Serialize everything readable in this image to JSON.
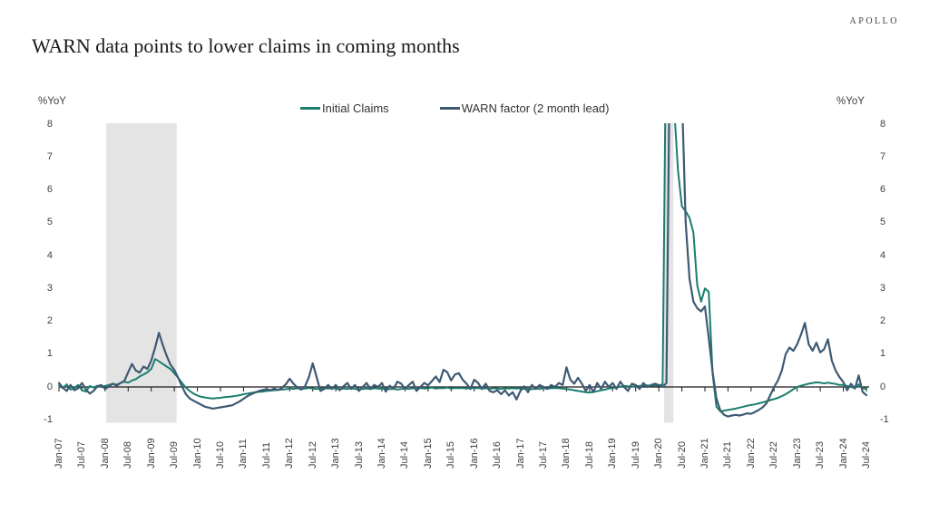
{
  "brand": "APOLLO",
  "title": "WARN data points to lower claims in coming months",
  "axis": {
    "left_unit": "%YoY",
    "right_unit": "%YoY"
  },
  "chart_data": {
    "type": "line",
    "title": "WARN data points to lower claims in coming months",
    "xlabel": "",
    "ylabel": "%YoY",
    "frequency": "monthly",
    "x_start": "Jan-2007",
    "x_end": "Jul-2024",
    "ylim": [
      -1.1,
      8.05
    ],
    "grid": false,
    "legend_position": "top-center",
    "y_ticks": [
      8,
      7,
      6,
      5,
      4,
      3,
      2,
      1,
      0,
      -1
    ],
    "x_tick_labels": [
      "Jan-07",
      "Jul-07",
      "Jan-08",
      "Jul-08",
      "Jan-09",
      "Jul-09",
      "Jan-10",
      "Jul-10",
      "Jan-11",
      "Jul-11",
      "Jan-12",
      "Jul-12",
      "Jan-13",
      "Jul-13",
      "Jan-14",
      "Jul-14",
      "Jan-15",
      "Jul-15",
      "Jan-16",
      "Jul-16",
      "Jan-17",
      "Jul-17",
      "Jan-18",
      "Jul-18",
      "Jan-19",
      "Jul-19",
      "Jan-20",
      "Jul-20",
      "Jan-21",
      "Jul-21",
      "Jan-22",
      "Jul-22",
      "Jan-23",
      "Jul-23",
      "Jan-24",
      "Jul-24"
    ],
    "months_per_tick": 6,
    "recession_bands_month_index": [
      {
        "start": 12.3,
        "end": 30.6
      },
      {
        "start": 157.4,
        "end": 159.8
      }
    ],
    "band_color": "#e4e4e4",
    "zero_line_color": "#1a1a1a",
    "note": "values above ylim are clipped at top of plot (Covid 2020 spike goes off-chart)",
    "series": [
      {
        "name": "Initial Claims",
        "color": "#1a7e6e",
        "values": [
          0.05,
          -0.04,
          0.08,
          -0.08,
          -0.03,
          0.06,
          -0.1,
          -0.14,
          0.03,
          -0.02,
          0.04,
          0,
          0.03,
          0.06,
          0.1,
          0.07,
          0.12,
          0.16,
          0.13,
          0.2,
          0.24,
          0.32,
          0.38,
          0.45,
          0.55,
          0.85,
          0.78,
          0.7,
          0.62,
          0.55,
          0.42,
          0.28,
          0.12,
          -0.02,
          -0.12,
          -0.2,
          -0.26,
          -0.3,
          -0.32,
          -0.34,
          -0.35,
          -0.34,
          -0.33,
          -0.31,
          -0.3,
          -0.29,
          -0.27,
          -0.25,
          -0.22,
          -0.2,
          -0.18,
          -0.16,
          -0.15,
          -0.14,
          -0.12,
          -0.11,
          -0.1,
          -0.09,
          -0.08,
          -0.07,
          -0.05,
          -0.06,
          -0.04,
          -0.06,
          -0.05,
          -0.03,
          -0.05,
          -0.06,
          -0.05,
          -0.04,
          -0.05,
          -0.04,
          -0.05,
          -0.07,
          -0.05,
          -0.06,
          -0.04,
          -0.06,
          -0.08,
          -0.06,
          -0.05,
          -0.06,
          -0.04,
          -0.05,
          -0.06,
          -0.04,
          -0.07,
          -0.05,
          -0.08,
          -0.06,
          -0.05,
          -0.06,
          -0.04,
          -0.05,
          -0.03,
          -0.05,
          -0.04,
          -0.02,
          -0.05,
          -0.03,
          -0.04,
          -0.02,
          -0.05,
          -0.03,
          -0.04,
          -0.03,
          -0.05,
          -0.03,
          -0.04,
          -0.03,
          -0.05,
          -0.04,
          -0.06,
          -0.04,
          -0.05,
          -0.06,
          -0.04,
          -0.05,
          -0.04,
          -0.05,
          -0.04,
          -0.06,
          -0.05,
          -0.07,
          -0.05,
          -0.06,
          -0.04,
          -0.05,
          -0.04,
          -0.03,
          -0.04,
          -0.05,
          -0.06,
          -0.08,
          -0.1,
          -0.12,
          -0.14,
          -0.16,
          -0.17,
          -0.15,
          -0.13,
          -0.1,
          -0.08,
          -0.05,
          -0.03,
          -0.01,
          0.01,
          0.03,
          0.02,
          0.01,
          0.02,
          0.03,
          0.04,
          0.05,
          0.04,
          0.05,
          0.04,
          0.08,
          12,
          13,
          8.5,
          6.6,
          5.5,
          5.35,
          5.15,
          4.7,
          3.1,
          2.6,
          3,
          2.9,
          0.4,
          -0.6,
          -0.74,
          -0.72,
          -0.7,
          -0.68,
          -0.66,
          -0.63,
          -0.6,
          -0.57,
          -0.55,
          -0.53,
          -0.5,
          -0.47,
          -0.44,
          -0.4,
          -0.37,
          -0.33,
          -0.28,
          -0.22,
          -0.15,
          -0.07,
          0,
          0.04,
          0.07,
          0.1,
          0.12,
          0.14,
          0.13,
          0.11,
          0.13,
          0.11,
          0.09,
          0.06,
          0.06,
          0.03,
          0,
          -0.03,
          0.08,
          -0.03,
          -0.07
        ]
      },
      {
        "name": "WARN factor (2 month lead)",
        "color": "#3e5a73",
        "values": [
          0.12,
          -0.02,
          -0.12,
          0.06,
          -0.1,
          -0.04,
          0.12,
          -0.08,
          -0.2,
          -0.12,
          0.02,
          0.06,
          -0.06,
          0.02,
          0.1,
          0.04,
          0.12,
          0.18,
          0.45,
          0.7,
          0.5,
          0.44,
          0.62,
          0.55,
          0.8,
          1.2,
          1.65,
          1.28,
          0.95,
          0.68,
          0.52,
          0.28,
          0.02,
          -0.22,
          -0.35,
          -0.42,
          -0.48,
          -0.54,
          -0.6,
          -0.63,
          -0.66,
          -0.64,
          -0.62,
          -0.6,
          -0.58,
          -0.56,
          -0.5,
          -0.44,
          -0.36,
          -0.28,
          -0.22,
          -0.17,
          -0.12,
          -0.09,
          -0.07,
          -0.1,
          -0.05,
          -0.09,
          -0.03,
          0.08,
          0.25,
          0.1,
          -0.02,
          -0.08,
          0.02,
          0.3,
          0.72,
          0.3,
          -0.12,
          -0.06,
          0.06,
          -0.06,
          0.06,
          -0.1,
          0.02,
          0.12,
          -0.06,
          0.06,
          -0.12,
          0,
          0.12,
          -0.06,
          0.06,
          0,
          0.12,
          -0.14,
          0.04,
          -0.06,
          0.16,
          0.1,
          -0.06,
          0.06,
          0.16,
          -0.12,
          0,
          0.12,
          0.05,
          0.18,
          0.32,
          0.15,
          0.52,
          0.45,
          0.2,
          0.38,
          0.42,
          0.22,
          0.1,
          -0.06,
          0.22,
          0.12,
          -0.06,
          0.1,
          -0.12,
          -0.16,
          -0.1,
          -0.22,
          -0.1,
          -0.26,
          -0.16,
          -0.38,
          -0.12,
          0.02,
          -0.16,
          0.06,
          -0.06,
          0.06,
          0,
          -0.06,
          0.06,
          0,
          0.12,
          0.06,
          0.6,
          0.22,
          0.1,
          0.28,
          0.1,
          -0.12,
          0.06,
          -0.16,
          0.12,
          -0.06,
          0.16,
          0,
          0.12,
          -0.06,
          0.16,
          0,
          -0.12,
          0.1,
          0.06,
          -0.06,
          0.12,
          0,
          0.06,
          0.1,
          0.06,
          0,
          0.12,
          12,
          13,
          12,
          9,
          5,
          3.3,
          2.6,
          2.4,
          2.3,
          2.45,
          1.5,
          0.45,
          -0.35,
          -0.72,
          -0.85,
          -0.9,
          -0.87,
          -0.85,
          -0.87,
          -0.84,
          -0.8,
          -0.82,
          -0.76,
          -0.7,
          -0.62,
          -0.5,
          -0.25,
          0,
          0.2,
          0.5,
          1,
          1.2,
          1.1,
          1.3,
          1.6,
          1.95,
          1.3,
          1.1,
          1.35,
          1.05,
          1.15,
          1.45,
          0.8,
          0.5,
          0.3,
          0.15,
          -0.1,
          0.1,
          -0.05,
          0.35,
          -0.15,
          -0.25
        ]
      }
    ]
  }
}
